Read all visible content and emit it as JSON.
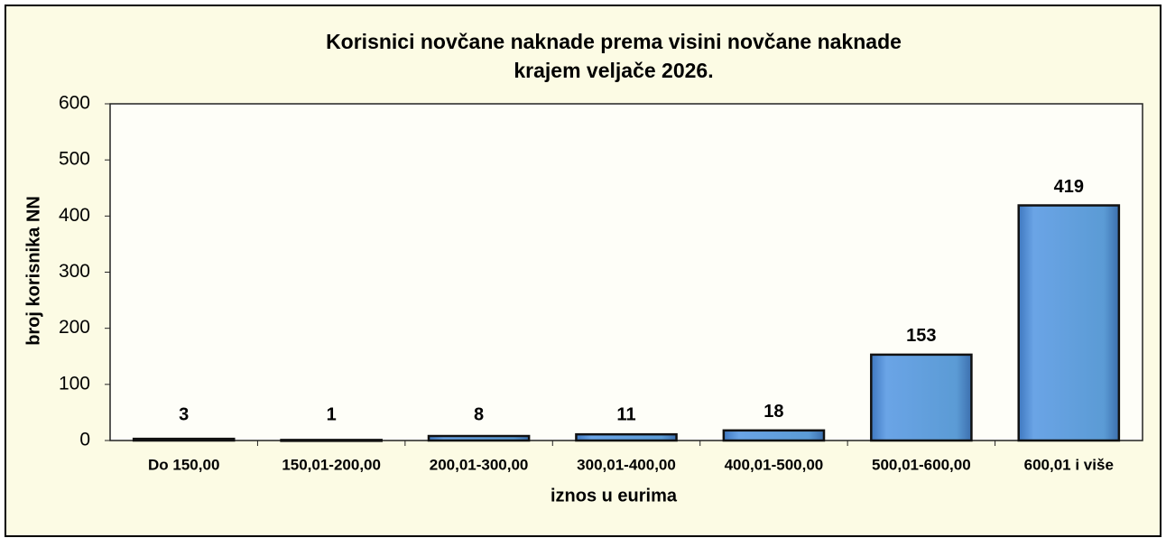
{
  "chart_data": {
    "type": "bar",
    "title": [
      "Korisnici novčane naknade prema visini novčane naknade",
      "krajem veljače 2026."
    ],
    "x_label": "iznos u eurima",
    "y_label": "broj korisnika NN",
    "categories": [
      "Do 150,00",
      "150,01-200,00",
      "200,01-300,00",
      "300,01-400,00",
      "400,01-500,00",
      "500,01-600,00",
      "600,01 i više"
    ],
    "values": [
      3,
      1,
      8,
      11,
      18,
      153,
      419
    ],
    "color": "#5b9bd5",
    "ylim": [
      0,
      600
    ],
    "yticks": [
      0,
      100,
      200,
      300,
      400,
      500,
      600
    ],
    "grid": false
  }
}
